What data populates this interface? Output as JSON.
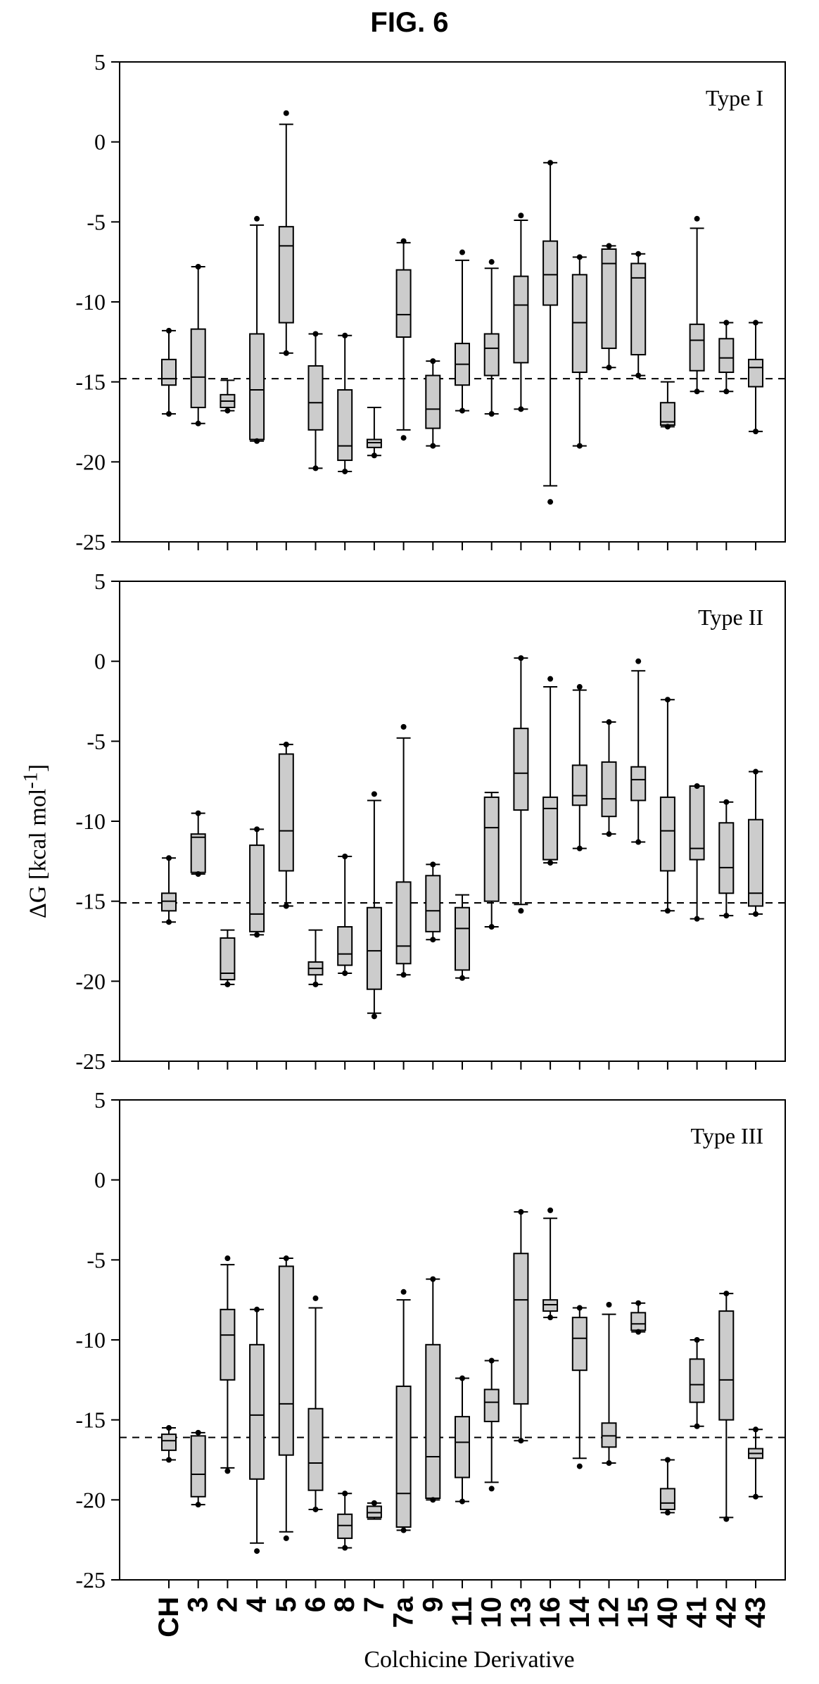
{
  "figure_title": "FIG. 6",
  "ylabel_main": "ΔG [kcal mol",
  "ylabel_sup": "-1",
  "ylabel_end": "]",
  "xlabel": "Colchicine Derivative",
  "colors": {
    "box_fill": "#cccccc",
    "stroke": "#000000"
  },
  "chart_data": [
    {
      "type": "box",
      "panel_label": "Type I",
      "ylim": [
        -25,
        5
      ],
      "yticks": [
        5,
        0,
        -5,
        -10,
        -15,
        -20,
        -25
      ],
      "reference_line": -14.8,
      "categories": [
        "CH",
        "3",
        "2",
        "4",
        "5",
        "6",
        "8",
        "7",
        "7a",
        "9",
        "11",
        "10",
        "13",
        "16",
        "14",
        "12",
        "15",
        "40",
        "41",
        "42",
        "43"
      ],
      "boxes": [
        {
          "wl": -17.0,
          "q1": -15.2,
          "med": -14.8,
          "q3": -13.6,
          "wh": -11.8,
          "out": [
            -17.0,
            -11.8
          ]
        },
        {
          "wl": -17.6,
          "q1": -16.6,
          "med": -14.7,
          "q3": -11.7,
          "wh": -7.8,
          "out": [
            -17.6,
            -7.8
          ]
        },
        {
          "wl": -16.8,
          "q1": -16.6,
          "med": -16.2,
          "q3": -15.8,
          "wh": -14.9,
          "out": [
            -16.8
          ]
        },
        {
          "wl": -18.7,
          "q1": -18.6,
          "med": -15.5,
          "q3": -12.0,
          "wh": -5.2,
          "out": [
            -18.7,
            -4.8
          ]
        },
        {
          "wl": -13.2,
          "q1": -11.3,
          "med": -6.5,
          "q3": -5.3,
          "wh": 1.1,
          "out": [
            -13.2,
            1.8
          ]
        },
        {
          "wl": -20.4,
          "q1": -18.0,
          "med": -16.3,
          "q3": -14.0,
          "wh": -12.0,
          "out": [
            -20.4,
            -12.0
          ]
        },
        {
          "wl": -20.6,
          "q1": -19.9,
          "med": -19.0,
          "q3": -15.5,
          "wh": -12.1,
          "out": [
            -20.6,
            -12.1
          ]
        },
        {
          "wl": -19.6,
          "q1": -19.1,
          "med": -18.8,
          "q3": -18.6,
          "wh": -16.6,
          "out": [
            -19.6
          ]
        },
        {
          "wl": -18.0,
          "q1": -12.2,
          "med": -10.8,
          "q3": -8.0,
          "wh": -6.3,
          "out": [
            -18.5,
            -6.2
          ]
        },
        {
          "wl": -19.0,
          "q1": -17.9,
          "med": -16.7,
          "q3": -14.6,
          "wh": -13.7,
          "out": [
            -19.0,
            -13.7
          ]
        },
        {
          "wl": -16.8,
          "q1": -15.2,
          "med": -13.9,
          "q3": -12.6,
          "wh": -7.4,
          "out": [
            -16.8,
            -6.9
          ]
        },
        {
          "wl": -17.0,
          "q1": -14.6,
          "med": -12.9,
          "q3": -12.0,
          "wh": -7.9,
          "out": [
            -17.0,
            -7.5
          ]
        },
        {
          "wl": -16.7,
          "q1": -13.8,
          "med": -10.2,
          "q3": -8.4,
          "wh": -4.9,
          "out": [
            -16.7,
            -4.6
          ]
        },
        {
          "wl": -21.5,
          "q1": -10.2,
          "med": -8.3,
          "q3": -6.2,
          "wh": -1.3,
          "out": [
            -22.5,
            -1.3
          ]
        },
        {
          "wl": -19.0,
          "q1": -14.4,
          "med": -11.3,
          "q3": -8.3,
          "wh": -7.2,
          "out": [
            -19.0,
            -7.2
          ]
        },
        {
          "wl": -14.1,
          "q1": -12.9,
          "med": -7.6,
          "q3": -6.7,
          "wh": -6.5,
          "out": [
            -14.1,
            -6.5
          ]
        },
        {
          "wl": -14.6,
          "q1": -13.3,
          "med": -8.5,
          "q3": -7.6,
          "wh": -7.0,
          "out": [
            -14.6,
            -7.0
          ]
        },
        {
          "wl": -17.8,
          "q1": -17.7,
          "med": -17.5,
          "q3": -16.3,
          "wh": -15.0,
          "out": [
            -17.8
          ]
        },
        {
          "wl": -15.6,
          "q1": -14.3,
          "med": -12.4,
          "q3": -11.4,
          "wh": -5.4,
          "out": [
            -15.6,
            -4.8
          ]
        },
        {
          "wl": -15.6,
          "q1": -14.4,
          "med": -13.5,
          "q3": -12.3,
          "wh": -11.3,
          "out": [
            -15.6,
            -11.3
          ]
        },
        {
          "wl": -18.1,
          "q1": -15.3,
          "med": -14.1,
          "q3": -13.6,
          "wh": -11.3,
          "out": [
            -18.1,
            -11.3
          ]
        }
      ]
    },
    {
      "type": "box",
      "panel_label": "Type II",
      "ylim": [
        -25,
        5
      ],
      "yticks": [
        5,
        0,
        -5,
        -10,
        -15,
        -20,
        -25
      ],
      "reference_line": -15.1,
      "categories": [
        "CH",
        "3",
        "2",
        "4",
        "5",
        "6",
        "8",
        "7",
        "7a",
        "9",
        "11",
        "10",
        "13",
        "16",
        "14",
        "12",
        "15",
        "40",
        "41",
        "42",
        "43"
      ],
      "boxes": [
        {
          "wl": -16.3,
          "q1": -15.6,
          "med": -15.0,
          "q3": -14.5,
          "wh": -12.3,
          "out": [
            -16.3,
            -12.3
          ]
        },
        {
          "wl": -13.3,
          "q1": -13.2,
          "med": -11.0,
          "q3": -10.8,
          "wh": -9.5,
          "out": [
            -13.3,
            -9.5
          ]
        },
        {
          "wl": -20.2,
          "q1": -19.9,
          "med": -19.5,
          "q3": -17.3,
          "wh": -16.8,
          "out": [
            -20.2
          ]
        },
        {
          "wl": -17.1,
          "q1": -16.9,
          "med": -15.8,
          "q3": -11.5,
          "wh": -10.5,
          "out": [
            -17.1,
            -10.5
          ]
        },
        {
          "wl": -15.3,
          "q1": -13.1,
          "med": -10.6,
          "q3": -5.8,
          "wh": -5.2,
          "out": [
            -15.3,
            -5.2
          ]
        },
        {
          "wl": -20.2,
          "q1": -19.6,
          "med": -19.2,
          "q3": -18.8,
          "wh": -16.8,
          "out": [
            -20.2
          ]
        },
        {
          "wl": -19.5,
          "q1": -19.0,
          "med": -18.3,
          "q3": -16.6,
          "wh": -12.2,
          "out": [
            -19.5,
            -12.2
          ]
        },
        {
          "wl": -22.0,
          "q1": -20.5,
          "med": -18.1,
          "q3": -15.4,
          "wh": -8.7,
          "out": [
            -22.2,
            -8.3
          ]
        },
        {
          "wl": -19.6,
          "q1": -18.9,
          "med": -17.8,
          "q3": -13.8,
          "wh": -4.8,
          "out": [
            -19.6,
            -4.1
          ]
        },
        {
          "wl": -17.4,
          "q1": -16.9,
          "med": -15.6,
          "q3": -13.4,
          "wh": -12.7,
          "out": [
            -17.4,
            -12.7
          ]
        },
        {
          "wl": -19.8,
          "q1": -19.3,
          "med": -16.7,
          "q3": -15.4,
          "wh": -14.6,
          "out": [
            -19.8
          ]
        },
        {
          "wl": -16.6,
          "q1": -15.0,
          "med": -10.4,
          "q3": -8.5,
          "wh": -8.2,
          "out": [
            -16.6
          ]
        },
        {
          "wl": -15.2,
          "q1": -9.3,
          "med": -7.0,
          "q3": -4.2,
          "wh": 0.2,
          "out": [
            -15.6,
            0.2
          ]
        },
        {
          "wl": -12.6,
          "q1": -12.4,
          "med": -9.2,
          "q3": -8.5,
          "wh": -1.6,
          "out": [
            -12.6,
            -1.1
          ]
        },
        {
          "wl": -11.7,
          "q1": -9.0,
          "med": -8.4,
          "q3": -6.5,
          "wh": -1.8,
          "out": [
            -11.7,
            -1.6
          ]
        },
        {
          "wl": -10.8,
          "q1": -9.7,
          "med": -8.6,
          "q3": -6.3,
          "wh": -3.8,
          "out": [
            -10.8,
            -3.8
          ]
        },
        {
          "wl": -11.3,
          "q1": -8.7,
          "med": -7.4,
          "q3": -6.6,
          "wh": -0.6,
          "out": [
            -11.3,
            0.0
          ]
        },
        {
          "wl": -15.6,
          "q1": -13.1,
          "med": -10.6,
          "q3": -8.5,
          "wh": -2.4,
          "out": [
            -15.6,
            -2.4
          ]
        },
        {
          "wl": -16.1,
          "q1": -12.4,
          "med": -11.7,
          "q3": -7.8,
          "wh": -7.8,
          "out": [
            -16.1,
            -7.8
          ]
        },
        {
          "wl": -15.9,
          "q1": -14.5,
          "med": -12.9,
          "q3": -10.1,
          "wh": -8.8,
          "out": [
            -15.9,
            -8.8
          ]
        },
        {
          "wl": -15.8,
          "q1": -15.3,
          "med": -14.5,
          "q3": -9.9,
          "wh": -6.9,
          "out": [
            -15.8,
            -6.9
          ]
        }
      ]
    },
    {
      "type": "box",
      "panel_label": "Type III",
      "ylim": [
        -25,
        5
      ],
      "yticks": [
        5,
        0,
        -5,
        -10,
        -15,
        -20,
        -25
      ],
      "reference_line": -16.1,
      "categories": [
        "CH",
        "3",
        "2",
        "4",
        "5",
        "6",
        "8",
        "7",
        "7a",
        "9",
        "11",
        "10",
        "13",
        "16",
        "14",
        "12",
        "15",
        "40",
        "41",
        "42",
        "43"
      ],
      "boxes": [
        {
          "wl": -17.5,
          "q1": -16.9,
          "med": -16.3,
          "q3": -15.9,
          "wh": -15.5,
          "out": [
            -17.5,
            -15.5
          ]
        },
        {
          "wl": -20.3,
          "q1": -19.8,
          "med": -18.4,
          "q3": -16.0,
          "wh": -15.8,
          "out": [
            -20.3,
            -15.8
          ]
        },
        {
          "wl": -18.0,
          "q1": -12.5,
          "med": -9.7,
          "q3": -8.1,
          "wh": -5.3,
          "out": [
            -18.2,
            -4.9
          ]
        },
        {
          "wl": -22.7,
          "q1": -18.7,
          "med": -14.7,
          "q3": -10.3,
          "wh": -8.1,
          "out": [
            -23.2,
            -8.1
          ]
        },
        {
          "wl": -22.0,
          "q1": -17.2,
          "med": -14.0,
          "q3": -5.4,
          "wh": -4.9,
          "out": [
            -22.4,
            -4.9
          ]
        },
        {
          "wl": -20.6,
          "q1": -19.4,
          "med": -17.7,
          "q3": -14.3,
          "wh": -8.0,
          "out": [
            -20.6,
            -7.4
          ]
        },
        {
          "wl": -23.0,
          "q1": -22.4,
          "med": -21.6,
          "q3": -20.9,
          "wh": -19.6,
          "out": [
            -23.0,
            -19.6
          ]
        },
        {
          "wl": -21.2,
          "q1": -21.1,
          "med": -20.8,
          "q3": -20.4,
          "wh": -20.2,
          "out": [
            -20.2
          ]
        },
        {
          "wl": -21.9,
          "q1": -21.7,
          "med": -19.6,
          "q3": -12.9,
          "wh": -7.5,
          "out": [
            -21.9,
            -7.0
          ]
        },
        {
          "wl": -20.0,
          "q1": -19.9,
          "med": -17.3,
          "q3": -10.3,
          "wh": -6.2,
          "out": [
            -20.0,
            -6.2
          ]
        },
        {
          "wl": -20.1,
          "q1": -18.6,
          "med": -16.4,
          "q3": -14.8,
          "wh": -12.4,
          "out": [
            -20.1,
            -12.4
          ]
        },
        {
          "wl": -18.9,
          "q1": -15.1,
          "med": -13.9,
          "q3": -13.1,
          "wh": -11.3,
          "out": [
            -19.3,
            -11.3
          ]
        },
        {
          "wl": -16.3,
          "q1": -14.0,
          "med": -7.5,
          "q3": -4.6,
          "wh": -2.0,
          "out": [
            -16.3,
            -2.0
          ]
        },
        {
          "wl": -8.6,
          "q1": -8.2,
          "med": -7.8,
          "q3": -7.5,
          "wh": -2.4,
          "out": [
            -8.6,
            -1.9
          ]
        },
        {
          "wl": -17.4,
          "q1": -11.9,
          "med": -9.9,
          "q3": -8.6,
          "wh": -8.0,
          "out": [
            -17.9,
            -8.0
          ]
        },
        {
          "wl": -17.7,
          "q1": -16.7,
          "med": -16.0,
          "q3": -15.2,
          "wh": -8.4,
          "out": [
            -17.7,
            -7.8
          ]
        },
        {
          "wl": -9.5,
          "q1": -9.4,
          "med": -9.0,
          "q3": -8.3,
          "wh": -7.7,
          "out": [
            -9.5,
            -7.7
          ]
        },
        {
          "wl": -20.8,
          "q1": -20.6,
          "med": -20.2,
          "q3": -19.3,
          "wh": -17.5,
          "out": [
            -20.8,
            -17.5
          ]
        },
        {
          "wl": -15.4,
          "q1": -13.9,
          "med": -12.8,
          "q3": -11.2,
          "wh": -10.0,
          "out": [
            -15.4,
            -10.0
          ]
        },
        {
          "wl": -21.1,
          "q1": -15.0,
          "med": -12.5,
          "q3": -8.2,
          "wh": -7.1,
          "out": [
            -21.2,
            -7.1
          ]
        },
        {
          "wl": -19.8,
          "q1": -17.4,
          "med": -17.1,
          "q3": -16.8,
          "wh": -15.6,
          "out": [
            -19.8,
            -15.6
          ]
        }
      ]
    }
  ]
}
